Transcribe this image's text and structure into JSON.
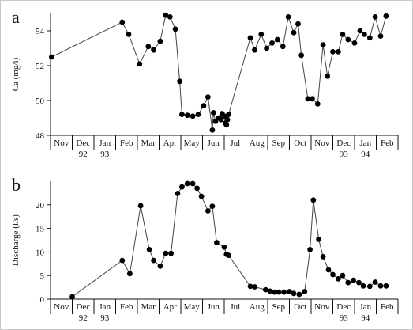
{
  "chart_data": [
    {
      "type": "scatter",
      "panel_label": "a",
      "title": "",
      "xlabel": "",
      "ylabel": "Ca (mg/l)",
      "ylim": [
        48,
        55
      ],
      "yticks": [
        48,
        50,
        52,
        54
      ],
      "x_unit": "month index (0 = Nov 1992, 1 = Dec 1992, ..., 15 = Feb 1994)",
      "xlim": [
        0,
        16
      ],
      "months": [
        "Nov",
        "Dec",
        "Jan",
        "Feb",
        "Mar",
        "Apr",
        "May",
        "Jun",
        "Jul",
        "Aug",
        "Sep",
        "Oct",
        "Nov",
        "Dec",
        "Jan",
        "Feb"
      ],
      "year_labels": [
        {
          "month_index": 1,
          "text": "92"
        },
        {
          "month_index": 2,
          "text": "93"
        },
        {
          "month_index": 13,
          "text": "93"
        },
        {
          "month_index": 14,
          "text": "94"
        }
      ],
      "x": [
        0.05,
        3.3,
        3.6,
        4.1,
        4.5,
        4.75,
        5.05,
        5.3,
        5.5,
        5.75,
        5.95,
        6.05,
        6.3,
        6.55,
        6.8,
        7.05,
        7.25,
        7.45,
        7.5,
        7.6,
        7.75,
        7.85,
        7.9,
        8.0,
        8.05,
        8.1,
        8.15,
        8.2,
        9.2,
        9.4,
        9.7,
        9.95,
        10.2,
        10.45,
        10.7,
        10.95,
        11.2,
        11.4,
        11.55,
        11.85,
        12.05,
        12.3,
        12.55,
        12.75,
        13.0,
        13.25,
        13.45,
        13.7,
        14.0,
        14.25,
        14.45,
        14.7,
        14.95,
        15.2,
        15.45
      ],
      "y": [
        52.5,
        54.5,
        53.8,
        52.1,
        53.1,
        52.9,
        53.4,
        54.9,
        54.8,
        54.1,
        51.1,
        49.2,
        49.15,
        49.1,
        49.2,
        49.7,
        50.2,
        48.3,
        49.3,
        48.8,
        49.0,
        48.9,
        49.25,
        49.1,
        48.7,
        48.6,
        48.9,
        49.2,
        53.6,
        52.9,
        53.8,
        53.0,
        53.3,
        53.5,
        53.1,
        54.8,
        53.9,
        54.4,
        52.6,
        50.1,
        50.1,
        49.8,
        53.2,
        51.4,
        52.8,
        52.8,
        53.8,
        53.5,
        53.3,
        54.0,
        53.8,
        53.6,
        54.8,
        53.7,
        54.85
      ]
    },
    {
      "type": "line",
      "panel_label": "b",
      "title": "",
      "xlabel": "",
      "ylabel": "Discharge (l/s)",
      "ylim": [
        0,
        25
      ],
      "yticks": [
        0,
        5,
        10,
        15,
        20
      ],
      "x_unit": "month index (0 = Nov 1992, 1 = Dec 1992, ..., 15 = Feb 1994)",
      "xlim": [
        0,
        16
      ],
      "months": [
        "Nov",
        "Dec",
        "Jan",
        "Feb",
        "Mar",
        "Apr",
        "May",
        "Jun",
        "Jul",
        "Aug",
        "Sep",
        "Oct",
        "Nov",
        "Dec",
        "Jan",
        "Feb"
      ],
      "year_labels": [
        {
          "month_index": 1,
          "text": "92"
        },
        {
          "month_index": 2,
          "text": "93"
        },
        {
          "month_index": 13,
          "text": "93"
        },
        {
          "month_index": 14,
          "text": "94"
        }
      ],
      "x": [
        1.0,
        3.3,
        3.65,
        4.15,
        4.55,
        4.75,
        5.05,
        5.3,
        5.55,
        5.85,
        6.05,
        6.3,
        6.55,
        6.75,
        6.95,
        7.25,
        7.45,
        7.65,
        8.0,
        8.1,
        8.2,
        9.2,
        9.4,
        9.9,
        10.1,
        10.3,
        10.5,
        10.75,
        11.0,
        11.2,
        11.45,
        11.7,
        11.95,
        12.1,
        12.35,
        12.55,
        12.8,
        13.0,
        13.25,
        13.45,
        13.7,
        13.95,
        14.2,
        14.4,
        14.7,
        14.95,
        15.2,
        15.45
      ],
      "y": [
        0.5,
        8.2,
        5.4,
        19.8,
        10.5,
        8.2,
        7.0,
        9.7,
        9.7,
        22.4,
        23.8,
        24.5,
        24.5,
        23.5,
        21.8,
        18.7,
        19.7,
        12.0,
        11.0,
        9.5,
        9.3,
        2.7,
        2.6,
        2.0,
        1.7,
        1.5,
        1.5,
        1.5,
        1.6,
        1.2,
        1.0,
        1.6,
        10.5,
        21.0,
        12.7,
        9.0,
        6.2,
        5.2,
        4.3,
        5.0,
        3.5,
        4.0,
        3.5,
        2.8,
        2.7,
        3.6,
        2.8,
        2.8
      ]
    }
  ]
}
